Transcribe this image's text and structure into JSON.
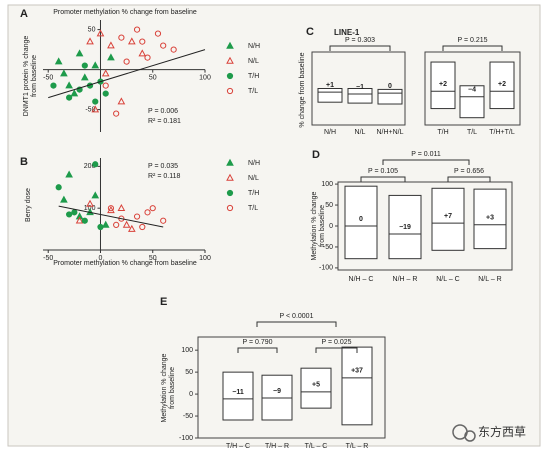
{
  "chart_data": [
    {
      "type": "scatter",
      "panel_label": "A",
      "title": "Promoter methylation % change from baseline",
      "y_label": [
        "DNMT1 protein % change",
        "from baseline"
      ],
      "xlim": [
        -55,
        100
      ],
      "ylim": [
        -78,
        62
      ],
      "xticks": [
        -50,
        50,
        100
      ],
      "yticks": [
        50,
        -50
      ],
      "annotations": [
        "P = 0.006",
        "R² = 0.181"
      ],
      "trend_line": {
        "x": [
          -50,
          100
        ],
        "y": [
          -35,
          25
        ]
      },
      "series": [
        {
          "name": "N/H",
          "marker": "triangle",
          "filled": true,
          "color": "#1e9b4b",
          "x": [
            -40,
            -35,
            -30,
            -20,
            -15,
            -5,
            -25,
            10
          ],
          "y": [
            10,
            -5,
            -20,
            20,
            -10,
            5,
            -30,
            15
          ]
        },
        {
          "name": "N/L",
          "marker": "triangle",
          "filled": false,
          "color": "#d9423a",
          "x": [
            0,
            5,
            10,
            30,
            -10,
            40,
            20,
            -5
          ],
          "y": [
            45,
            -5,
            30,
            35,
            35,
            20,
            -40,
            -50
          ]
        },
        {
          "name": "T/H",
          "marker": "circle",
          "filled": true,
          "color": "#1e9b4b",
          "x": [
            -45,
            -30,
            -20,
            -10,
            -5,
            0,
            -15,
            5
          ],
          "y": [
            -20,
            -35,
            -25,
            -20,
            -40,
            -15,
            5,
            -30
          ]
        },
        {
          "name": "T/L",
          "marker": "circle",
          "filled": false,
          "color": "#d9423a",
          "x": [
            20,
            40,
            60,
            45,
            35,
            70,
            55,
            25,
            5,
            15
          ],
          "y": [
            40,
            35,
            30,
            15,
            50,
            25,
            45,
            10,
            -20,
            -55
          ]
        }
      ]
    },
    {
      "type": "scatter",
      "panel_label": "B",
      "x_label": "Promoter methylation % change from baseline",
      "y_label": [
        "Berry dose"
      ],
      "xlim": [
        -55,
        100
      ],
      "ylim": [
        0,
        220
      ],
      "xticks": [
        -50,
        0,
        50,
        100
      ],
      "yticks": [
        100,
        200
      ],
      "annotations": [
        "P = 0.035",
        "R² = 0.118"
      ],
      "trend_line": {
        "x": [
          -40,
          60
        ],
        "y": [
          105,
          55
        ]
      },
      "series": [
        {
          "name": "N/H",
          "marker": "triangle",
          "filled": true,
          "color": "#1e9b4b",
          "x": [
            -30,
            -35,
            -5,
            -20,
            -10,
            5
          ],
          "y": [
            180,
            120,
            130,
            80,
            90,
            60
          ]
        },
        {
          "name": "N/L",
          "marker": "triangle",
          "filled": false,
          "color": "#d9423a",
          "x": [
            -10,
            20,
            30,
            10,
            -20,
            25
          ],
          "y": [
            110,
            100,
            50,
            95,
            70,
            60
          ]
        },
        {
          "name": "T/H",
          "marker": "circle",
          "filled": true,
          "color": "#1e9b4b",
          "x": [
            -40,
            -5,
            -25,
            -15,
            0,
            -30
          ],
          "y": [
            150,
            205,
            90,
            70,
            55,
            85
          ]
        },
        {
          "name": "T/L",
          "marker": "circle",
          "filled": false,
          "color": "#d9423a",
          "x": [
            10,
            35,
            45,
            60,
            50,
            20,
            40,
            15
          ],
          "y": [
            100,
            80,
            90,
            70,
            100,
            75,
            55,
            60
          ]
        }
      ]
    },
    {
      "type": "box",
      "panel_label": "C",
      "title": "LINE-1",
      "y_label": [
        "% change from baseline"
      ],
      "categories": [
        "N/H",
        "N/L",
        "N/H+N/L"
      ],
      "low": [
        -10,
        -11,
        -12
      ],
      "high": [
        5,
        5,
        4
      ],
      "median": [
        1,
        -1,
        0
      ],
      "median_labels": [
        "+1",
        "−1",
        "0"
      ],
      "ylim": [
        -35,
        45
      ],
      "comparisons": [
        "P = 0.303"
      ]
    },
    {
      "type": "box",
      "categories": [
        "T/H",
        "T/L",
        "T/H+T/L"
      ],
      "low": [
        -17,
        -27,
        -17
      ],
      "high": [
        34,
        8,
        34
      ],
      "median": [
        2,
        -4,
        2
      ],
      "median_labels": [
        "+2",
        "−4",
        "+2"
      ],
      "ylim": [
        -35,
        45
      ],
      "comparisons": [
        "P = 0.215"
      ]
    },
    {
      "type": "box",
      "panel_label": "D",
      "y_label": [
        "Methylation % change",
        "from baseline"
      ],
      "categories": [
        "N/H – C",
        "N/H – R",
        "N/L – C",
        "N/L – R"
      ],
      "low": [
        -78,
        -78,
        -58,
        -54
      ],
      "high": [
        95,
        73,
        90,
        88
      ],
      "median": [
        0,
        -19,
        7,
        3
      ],
      "median_labels": [
        "0",
        "−19",
        "+7",
        "+3"
      ],
      "ylim": [
        -105,
        105
      ],
      "yticks": [
        100,
        50,
        0,
        -50,
        -100
      ],
      "comparisons": [
        "P = 0.105",
        "P = 0.656",
        "P = 0.011"
      ]
    },
    {
      "type": "box",
      "panel_label": "E",
      "y_label": [
        "Methylation % change",
        "from baseline"
      ],
      "categories": [
        "T/H – C",
        "T/H – R",
        "T/L – C",
        "T/L – R"
      ],
      "low": [
        -59,
        -59,
        -32,
        -70
      ],
      "high": [
        50,
        43,
        59,
        107
      ],
      "median": [
        -11,
        -9,
        5,
        37
      ],
      "median_labels": [
        "−11",
        "−9",
        "+5",
        "+37"
      ],
      "ylim": [
        -100,
        130
      ],
      "yticks": [
        100,
        50,
        0,
        -50,
        -100
      ],
      "comparisons": [
        "P = 0.790",
        "P = 0.025",
        "P < 0.0001"
      ]
    }
  ],
  "watermark": "东方西草"
}
